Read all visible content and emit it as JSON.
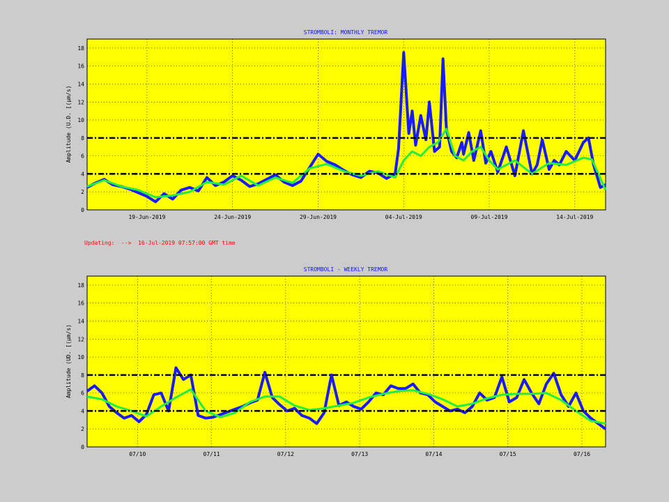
{
  "update_note": "Updating:  -->  16-Jul-2019 07:57:00 GMT time",
  "colors": {
    "background": "#cccccc",
    "plot_bg": "#ffff00",
    "raw": "#1a1aff",
    "smooth": "#22ee44",
    "threshold": "#000000",
    "title": "#1010ff",
    "note": "#ff0000"
  },
  "chart_data": [
    {
      "type": "line",
      "title": "STROMBOLI: MONTHLY TREMOR",
      "ylabel": "Amplitude   (U.D. [(µm/s)",
      "ylim": [
        0,
        19
      ],
      "yticks": [
        "0",
        "2",
        "4",
        "6",
        "8",
        "10",
        "12",
        "14",
        "16",
        "18"
      ],
      "xlim": [
        0,
        30.3
      ],
      "xticks": [
        {
          "x": 3.5,
          "label": "19-Jun-2019"
        },
        {
          "x": 8.5,
          "label": "24-Jun-2019"
        },
        {
          "x": 13.5,
          "label": "29-Jun-2019"
        },
        {
          "x": 18.5,
          "label": "04-Jul-2019"
        },
        {
          "x": 23.5,
          "label": "09-Jul-2019"
        },
        {
          "x": 28.5,
          "label": "14-Jul-2019"
        }
      ],
      "thresholds": [
        4,
        8
      ],
      "series": [
        {
          "role": "raw",
          "x": [
            0,
            0.5,
            1,
            1.5,
            2,
            2.5,
            3,
            3.5,
            4,
            4.5,
            5,
            5.5,
            6,
            6.5,
            7,
            7.5,
            8,
            8.5,
            9,
            9.5,
            10,
            10.5,
            11,
            11.5,
            12,
            12.5,
            13,
            13.5,
            14,
            14.5,
            15,
            15.5,
            16,
            16.5,
            17,
            17.5,
            18,
            18.2,
            18.5,
            18.8,
            19,
            19.2,
            19.5,
            19.8,
            20,
            20.3,
            20.6,
            20.8,
            21,
            21.3,
            21.6,
            21.9,
            22,
            22.3,
            22.6,
            23,
            23.3,
            23.6,
            24,
            24.5,
            25,
            25.5,
            26,
            26.3,
            26.6,
            27,
            27.3,
            27.6,
            28,
            28.5,
            29,
            29.3,
            29.6,
            30,
            30.3
          ],
          "y": [
            2.5,
            3,
            3.4,
            2.8,
            2.6,
            2.3,
            1.9,
            1.5,
            0.9,
            1.8,
            1.2,
            2.2,
            2.5,
            2.1,
            3.6,
            2.7,
            3.1,
            3.8,
            3.3,
            2.6,
            2.9,
            3.4,
            3.9,
            3.1,
            2.7,
            3.2,
            4.7,
            6.2,
            5.4,
            5.0,
            4.4,
            3.9,
            3.6,
            4.3,
            4.1,
            3.5,
            4.0,
            6.8,
            17.5,
            8.5,
            11,
            7.2,
            10.5,
            7.8,
            12.0,
            6.5,
            7.0,
            16.8,
            9.0,
            6.5,
            5.8,
            7.5,
            6.2,
            8.6,
            5.5,
            8.8,
            5.2,
            6.5,
            4.2,
            7.0,
            3.8,
            8.8,
            4.0,
            5.0,
            7.8,
            4.5,
            5.5,
            5.0,
            6.5,
            5.5,
            7.5,
            8.0,
            5.0,
            2.5,
            2.8
          ]
        },
        {
          "role": "smooth",
          "x": [
            0,
            1,
            2,
            3,
            4,
            5,
            6,
            7,
            8,
            9,
            10,
            11,
            12,
            13,
            14,
            15,
            16,
            17,
            18,
            18.5,
            19,
            19.5,
            20,
            20.5,
            21,
            21.5,
            22,
            22.5,
            23,
            23.5,
            24,
            25,
            26,
            27,
            28,
            29,
            29.5,
            30,
            30.3
          ],
          "y": [
            2.6,
            3.3,
            2.6,
            2.2,
            1.4,
            1.6,
            2.0,
            3.1,
            2.8,
            3.8,
            2.7,
            3.6,
            3.0,
            4.6,
            5.1,
            4.3,
            3.8,
            4.3,
            3.6,
            5.5,
            6.5,
            6.0,
            7.0,
            7.5,
            9.0,
            6.0,
            5.5,
            6.5,
            7.0,
            5.5,
            4.5,
            5.5,
            4.0,
            5.2,
            5.0,
            5.8,
            5.6,
            3.5,
            2.2
          ]
        }
      ]
    },
    {
      "type": "line",
      "title": "STROMBOLI - WEEKLY TREMOR",
      "ylabel": "Amplitude (UD. [(µm/s)",
      "ylim": [
        0,
        19
      ],
      "yticks": [
        "0",
        "2",
        "4",
        "6",
        "8",
        "10",
        "12",
        "14",
        "16",
        "18"
      ],
      "xlim": [
        0,
        7
      ],
      "xticks": [
        {
          "x": 0.68,
          "label": "07/10"
        },
        {
          "x": 1.68,
          "label": "07/11"
        },
        {
          "x": 2.68,
          "label": "07/12"
        },
        {
          "x": 3.68,
          "label": "07/13"
        },
        {
          "x": 4.68,
          "label": "07/14"
        },
        {
          "x": 5.68,
          "label": "07/15"
        },
        {
          "x": 6.68,
          "label": "07/16"
        }
      ],
      "thresholds": [
        4,
        8
      ],
      "series": [
        {
          "role": "raw",
          "x": [
            0,
            0.1,
            0.2,
            0.3,
            0.4,
            0.5,
            0.6,
            0.7,
            0.8,
            0.9,
            1.0,
            1.1,
            1.2,
            1.3,
            1.4,
            1.5,
            1.6,
            1.7,
            1.8,
            1.9,
            2.0,
            2.1,
            2.2,
            2.3,
            2.4,
            2.5,
            2.6,
            2.7,
            2.8,
            2.9,
            3.0,
            3.1,
            3.2,
            3.3,
            3.4,
            3.5,
            3.6,
            3.7,
            3.8,
            3.9,
            4.0,
            4.1,
            4.2,
            4.3,
            4.4,
            4.5,
            4.6,
            4.7,
            4.8,
            4.9,
            5.0,
            5.1,
            5.2,
            5.3,
            5.4,
            5.5,
            5.6,
            5.7,
            5.8,
            5.9,
            6.0,
            6.1,
            6.2,
            6.3,
            6.4,
            6.5,
            6.6,
            6.7,
            6.8,
            6.9,
            7.0
          ],
          "y": [
            6.2,
            6.8,
            6.0,
            4.5,
            3.8,
            3.2,
            3.5,
            2.8,
            3.6,
            5.8,
            6.0,
            4.0,
            8.8,
            7.5,
            8.0,
            3.5,
            3.2,
            3.3,
            3.6,
            3.9,
            4.2,
            4.5,
            4.9,
            5.2,
            8.3,
            5.5,
            4.7,
            4.0,
            4.3,
            3.5,
            3.2,
            2.6,
            3.8,
            8.0,
            4.6,
            5.0,
            4.5,
            4.2,
            5.0,
            6.0,
            5.8,
            6.8,
            6.5,
            6.5,
            7.0,
            6.0,
            5.8,
            5.0,
            4.5,
            4.0,
            4.2,
            3.8,
            4.5,
            6.0,
            5.2,
            5.5,
            7.8,
            5.0,
            5.5,
            7.5,
            6.0,
            4.8,
            7.0,
            8.2,
            5.8,
            4.5,
            6.0,
            4.0,
            3.2,
            2.6,
            2.0
          ]
        },
        {
          "role": "smooth",
          "x": [
            0,
            0.2,
            0.4,
            0.6,
            0.8,
            1.0,
            1.2,
            1.4,
            1.6,
            1.8,
            2.0,
            2.2,
            2.4,
            2.6,
            2.8,
            3.0,
            3.2,
            3.4,
            3.6,
            3.8,
            4.0,
            4.2,
            4.4,
            4.6,
            4.8,
            5.0,
            5.2,
            5.4,
            5.6,
            5.8,
            6.0,
            6.2,
            6.4,
            6.6,
            6.8,
            7.0
          ],
          "y": [
            5.6,
            5.3,
            4.5,
            4.0,
            3.4,
            4.5,
            5.5,
            6.4,
            4.0,
            3.3,
            3.8,
            5.0,
            5.6,
            5.6,
            4.6,
            4.1,
            4.3,
            4.6,
            4.9,
            5.5,
            5.9,
            6.2,
            6.3,
            5.9,
            5.3,
            4.5,
            4.8,
            5.4,
            5.8,
            5.9,
            5.9,
            6.0,
            5.2,
            4.0,
            2.9,
            2.6
          ]
        }
      ]
    }
  ]
}
